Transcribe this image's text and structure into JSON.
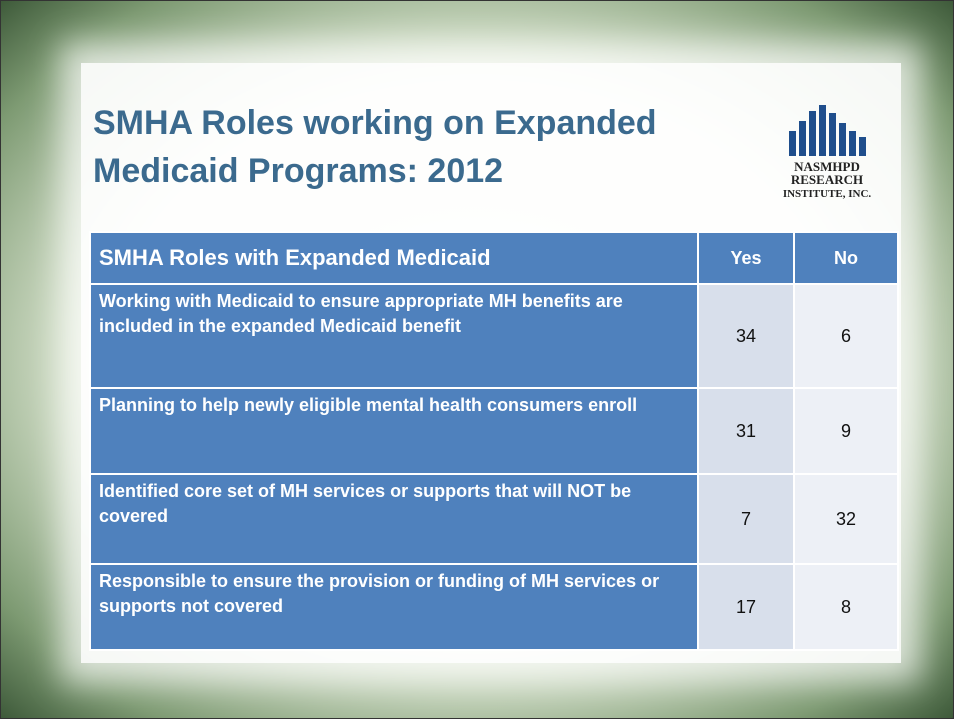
{
  "header": {
    "title": "SMHA Roles working on Expanded Medicaid Programs: 2012",
    "logo": [
      "NASMHPD",
      "RESEARCH",
      "INSTITUTE, INC."
    ]
  },
  "table": {
    "columns": [
      "SMHA Roles with Expanded Medicaid",
      "Yes",
      "No"
    ],
    "rows": [
      [
        "Working with Medicaid to ensure appropriate MH benefits are included in the expanded Medicaid benefit",
        34,
        6
      ],
      [
        "Planning to help newly eligible mental health consumers  enroll",
        31,
        9
      ],
      [
        "Identified core set of MH services or supports that will NOT be covered",
        7,
        32
      ],
      [
        "Responsible to ensure the provision or funding of MH services or supports not covered",
        17,
        8
      ]
    ]
  }
}
